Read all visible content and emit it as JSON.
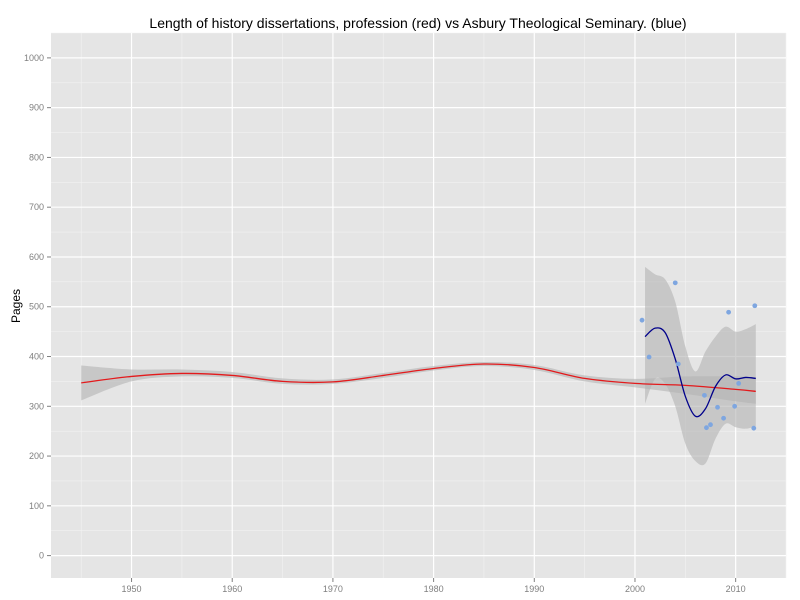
{
  "chart_data": {
    "type": "scatter",
    "title": "Length of history dissertations, profession (red) vs Asbury Theological Seminary. (blue)",
    "xlabel": "",
    "ylabel": "Pages",
    "xlim": [
      1942.0,
      2015.0
    ],
    "ylim": [
      -45,
      1050
    ],
    "x_ticks": [
      1950,
      1960,
      1970,
      1980,
      1990,
      2000,
      2010
    ],
    "y_ticks": [
      0,
      100,
      200,
      300,
      400,
      500,
      600,
      700,
      800,
      900,
      1000
    ],
    "grid": true,
    "colors": {
      "panel_background": "#e5e5e5",
      "grid_major": "#ffffff",
      "grid_minor": "#f2f2f2",
      "tick_text": "#7f7f7f",
      "ribbon": "#b3b3b3",
      "profession_line": "#e31a1c",
      "asbury_line": "#00008b",
      "asbury_points": "#7ea6e0"
    },
    "series": [
      {
        "color": "red",
        "kind": "smooth",
        "x": [
          1945,
          1950,
          1955,
          1960,
          1965,
          1970,
          1975,
          1980,
          1985,
          1990,
          1995,
          2000,
          2005,
          2010,
          2012
        ],
        "y": [
          347,
          360,
          366,
          362,
          350,
          349,
          362,
          376,
          385,
          378,
          356,
          346,
          342,
          334,
          330
        ],
        "ci_lower": [
          312,
          350,
          360,
          357,
          345,
          345,
          357,
          372,
          381,
          373,
          350,
          338,
          325,
          310,
          305
        ],
        "ci_upper": [
          382,
          374,
          374,
          369,
          356,
          354,
          367,
          381,
          389,
          383,
          362,
          355,
          360,
          360,
          358
        ]
      },
      {
        "color": "blue",
        "kind": "smooth",
        "x": [
          2001,
          2002,
          2003,
          2004,
          2005,
          2006,
          2007,
          2008,
          2009,
          2010,
          2011,
          2012
        ],
        "y": [
          440,
          457,
          448,
          395,
          320,
          280,
          295,
          340,
          363,
          355,
          358,
          356
        ],
        "ci_lower": [
          305,
          355,
          345,
          300,
          225,
          190,
          185,
          235,
          265,
          258,
          255,
          260
        ],
        "ci_upper": [
          580,
          565,
          555,
          510,
          420,
          370,
          410,
          440,
          460,
          450,
          455,
          465
        ]
      },
      {
        "color": "blue",
        "kind": "points",
        "x": [
          2000.7,
          2001.4,
          2004.0,
          2004.3,
          2006.9,
          2007.1,
          2007.5,
          2008.2,
          2008.8,
          2009.3,
          2009.9,
          2010.3,
          2011.8,
          2011.9
        ],
        "y": [
          473,
          399,
          548,
          385,
          322,
          257,
          263,
          298,
          276,
          489,
          300,
          346,
          256,
          502
        ]
      }
    ]
  }
}
